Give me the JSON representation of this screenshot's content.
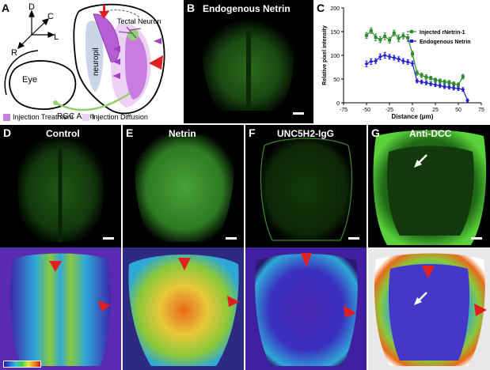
{
  "panels": {
    "A": {
      "letter": "A",
      "axes": {
        "dorsal": "D",
        "caudal": "C",
        "lateral": "L",
        "rostral": "R"
      },
      "labels": {
        "tectal_neuron": "Tectal Neuron",
        "neuropil": "neuropil",
        "eye": "Eye",
        "rgc_axon": "RGC Axon"
      },
      "legend": {
        "treatment": "Injection Treatment",
        "diffusion": "Injection Diffusion"
      },
      "colors": {
        "treatment": "#c77de0",
        "diffusion": "#ecd1f4",
        "neuropil": "#c9d6e8",
        "axon": "#8fd16a",
        "arrow": "#e02020"
      }
    },
    "B": {
      "letter": "B",
      "title": "Endogenous Netrin"
    },
    "D": {
      "letter": "D",
      "title": "Control"
    },
    "E": {
      "letter": "E",
      "title": "Netrin"
    },
    "F": {
      "letter": "F",
      "title": "UNC5H2-IgG"
    },
    "G": {
      "letter": "G",
      "title": "Anti-DCC"
    }
  },
  "chart_data": {
    "panel_letter": "C",
    "type": "line",
    "xlabel": "Distance (μm)",
    "ylabel": "Relative pixel intensity",
    "xlim": [
      -75,
      75
    ],
    "ylim": [
      0,
      200
    ],
    "xticks": [
      "-75",
      "-50",
      "-25",
      "0",
      "25",
      "50",
      "75"
    ],
    "yticks": [
      "0",
      "50",
      "100",
      "150",
      "200"
    ],
    "legend_position": "top-right",
    "series": [
      {
        "name": "Injected rNetrin-1",
        "color": "#2e8b2e",
        "x": [
          -50,
          -45,
          -40,
          -35,
          -30,
          -25,
          -20,
          -15,
          -10,
          -5,
          0,
          5,
          10,
          15,
          20,
          25,
          30,
          35,
          40,
          45,
          50,
          55
        ],
        "y": [
          142,
          152,
          138,
          133,
          140,
          132,
          147,
          136,
          141,
          137,
          103,
          63,
          58,
          54,
          52,
          48,
          46,
          44,
          43,
          40,
          38,
          55
        ],
        "errors": [
          6,
          6,
          7,
          6,
          7,
          6,
          6,
          7,
          6,
          7,
          6,
          5,
          5,
          5,
          4,
          4,
          4,
          4,
          4,
          4,
          4,
          5
        ]
      },
      {
        "name": "Endogenous Netrin",
        "color": "#1f1fcc",
        "x": [
          -50,
          -45,
          -40,
          -35,
          -30,
          -25,
          -20,
          -15,
          -10,
          -5,
          0,
          5,
          10,
          15,
          20,
          25,
          30,
          35,
          40,
          45,
          50,
          55,
          60
        ],
        "y": [
          82,
          87,
          88,
          97,
          100,
          97,
          95,
          92,
          88,
          86,
          83,
          46,
          44,
          42,
          40,
          38,
          36,
          34,
          33,
          31,
          30,
          28,
          5
        ],
        "errors": [
          6,
          6,
          5,
          6,
          6,
          5,
          5,
          5,
          5,
          5,
          5,
          4,
          4,
          4,
          4,
          4,
          4,
          4,
          4,
          4,
          4,
          4,
          3
        ]
      }
    ]
  },
  "colorbar": {
    "colors": [
      "#1a1aa0",
      "#2a6ee0",
      "#2ec4d8",
      "#3fd24a",
      "#e8e83a",
      "#f08a1a",
      "#e01a1a"
    ]
  }
}
